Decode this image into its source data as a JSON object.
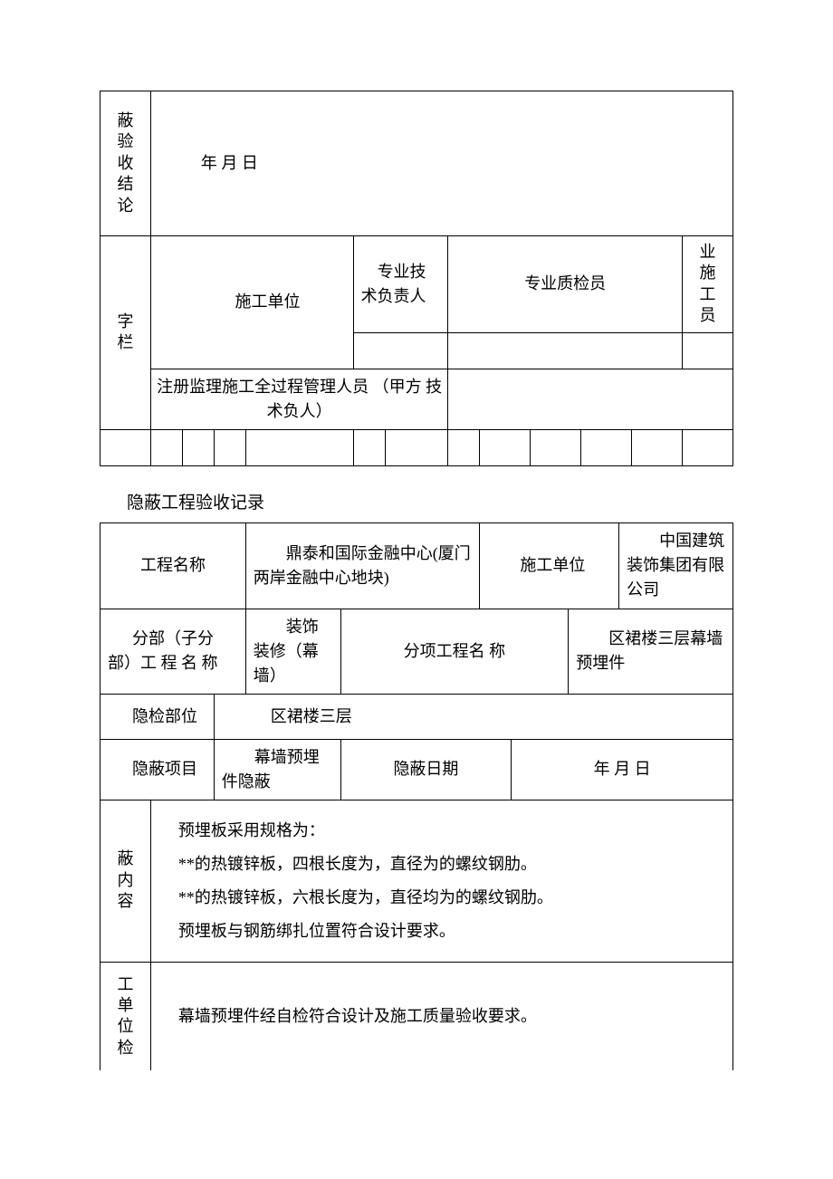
{
  "table1": {
    "r1c1": "蔽验收结论",
    "r1c2": "年 月 日",
    "r2c1": "字栏",
    "r2c2": "施工单位",
    "r2c3": "专业技术负责人",
    "r2c4": "专业质检员",
    "r2c5": "业施工员",
    "r3c1": "注册监理施工全过程管理人员 （甲方 技术负人）"
  },
  "title": "隐蔽工程验收记录",
  "table2": {
    "r1": {
      "l1": "工程名称",
      "v1": "鼎泰和国际金融中心(厦门两岸金融中心地块)",
      "l2": "施工单位",
      "v2": "中国建筑装饰集团有限公司"
    },
    "r2": {
      "l1": "分部（子分部）工 程 名 称",
      "v1": "装饰装修（幕墙）",
      "l2": "分项工程名 称",
      "v2": "区裙楼三层幕墙预埋件"
    },
    "r3": {
      "l1": "隐检部位",
      "v1": "区裙楼三层"
    },
    "r4": {
      "l1": "隐蔽项目",
      "v1": "幕墙预埋件隐蔽",
      "l2": "隐蔽日期",
      "v2": "年 月 日"
    },
    "r5": {
      "l1": "蔽内容",
      "p1": "预埋板采用规格为：",
      "p2": "**的热镀锌板，四根长度为，直径为的螺纹钢肋。",
      "p3": "**的热镀锌板，六根长度为，直径均为的螺纹钢肋。",
      "p4": "预埋板与钢筋绑扎位置符合设计要求。"
    },
    "r6": {
      "l1": "工单位检",
      "v1": "幕墙预埋件经自检符合设计及施工质量验收要求。"
    }
  }
}
